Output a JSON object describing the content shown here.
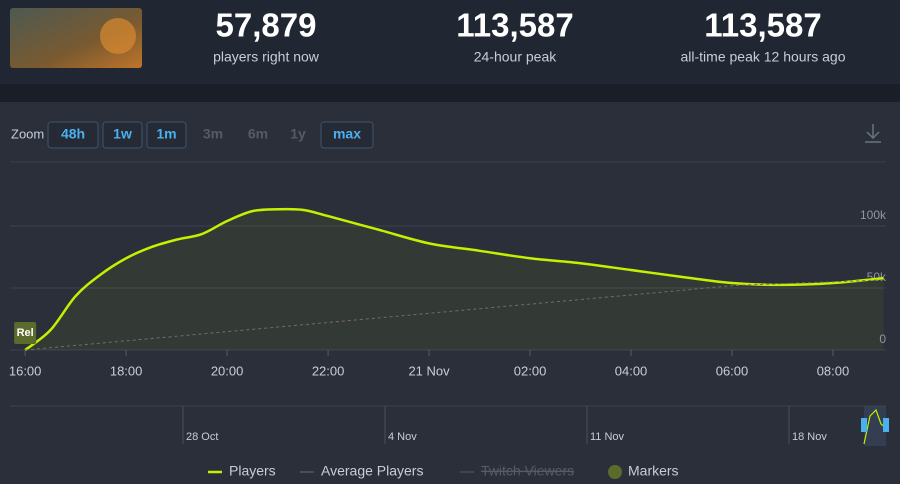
{
  "header": {
    "stats": [
      {
        "value": "57,879",
        "label": "players right now"
      },
      {
        "value": "113,587",
        "label": "24-hour peak"
      },
      {
        "value": "113,587",
        "label": "all-time peak 12 hours ago"
      }
    ]
  },
  "zoom": {
    "label": "Zoom",
    "options": [
      {
        "label": "48h",
        "enabled": true
      },
      {
        "label": "1w",
        "enabled": true
      },
      {
        "label": "1m",
        "enabled": true
      },
      {
        "label": "3m",
        "enabled": false
      },
      {
        "label": "6m",
        "enabled": false
      },
      {
        "label": "1y",
        "enabled": false
      },
      {
        "label": "max",
        "enabled": true
      }
    ]
  },
  "chart_data": {
    "type": "line",
    "x": [
      16,
      16.5,
      17,
      17.5,
      18,
      18.5,
      19,
      19.5,
      20,
      20.5,
      21,
      21.5,
      22,
      23,
      24,
      25,
      26,
      27,
      28,
      29,
      30,
      31,
      32,
      33
    ],
    "series": [
      {
        "name": "Players",
        "color": "#c5f000",
        "values": [
          0,
          16000,
          43500,
          61000,
          74000,
          83000,
          89000,
          93500,
          104000,
          112000,
          113500,
          113000,
          108000,
          97000,
          86000,
          80000,
          74000,
          70000,
          64500,
          59000,
          54000,
          52500,
          54000,
          58000
        ]
      },
      {
        "name": "Average Players",
        "color": "#7a6a62",
        "dashed": true,
        "values": [
          0,
          1850,
          3700,
          5550,
          7400,
          9250,
          11100,
          12950,
          14800,
          16650,
          18500,
          20350,
          22200,
          25900,
          29600,
          33300,
          37000,
          40700,
          44400,
          48100,
          51800,
          53500,
          55000,
          56500
        ]
      }
    ],
    "hidden_series": [
      {
        "name": "Twitch Viewers"
      }
    ],
    "markers": {
      "name": "Markers",
      "color": "#5b6b2b",
      "items": [
        {
          "label": "Rel",
          "x": 16
        }
      ]
    },
    "xlim": [
      15.7,
      33.05
    ],
    "xticks": [
      {
        "value": 16,
        "label": "16:00"
      },
      {
        "value": 18,
        "label": "18:00"
      },
      {
        "value": 20,
        "label": "20:00"
      },
      {
        "value": 22,
        "label": "22:00"
      },
      {
        "value": 24,
        "label": "21 Nov"
      },
      {
        "value": 26,
        "label": "02:00"
      },
      {
        "value": 28,
        "label": "04:00"
      },
      {
        "value": 30,
        "label": "06:00"
      },
      {
        "value": 32,
        "label": "08:00"
      }
    ],
    "ylim": [
      0,
      150000
    ],
    "yticks": [
      0,
      {
        "value": 50000,
        "label": "50k"
      },
      {
        "value": 100000,
        "label": "100k"
      }
    ],
    "grid": true
  },
  "navigator": {
    "labels": [
      "28 Oct",
      "4 Nov",
      "11 Nov",
      "18 Nov"
    ]
  }
}
